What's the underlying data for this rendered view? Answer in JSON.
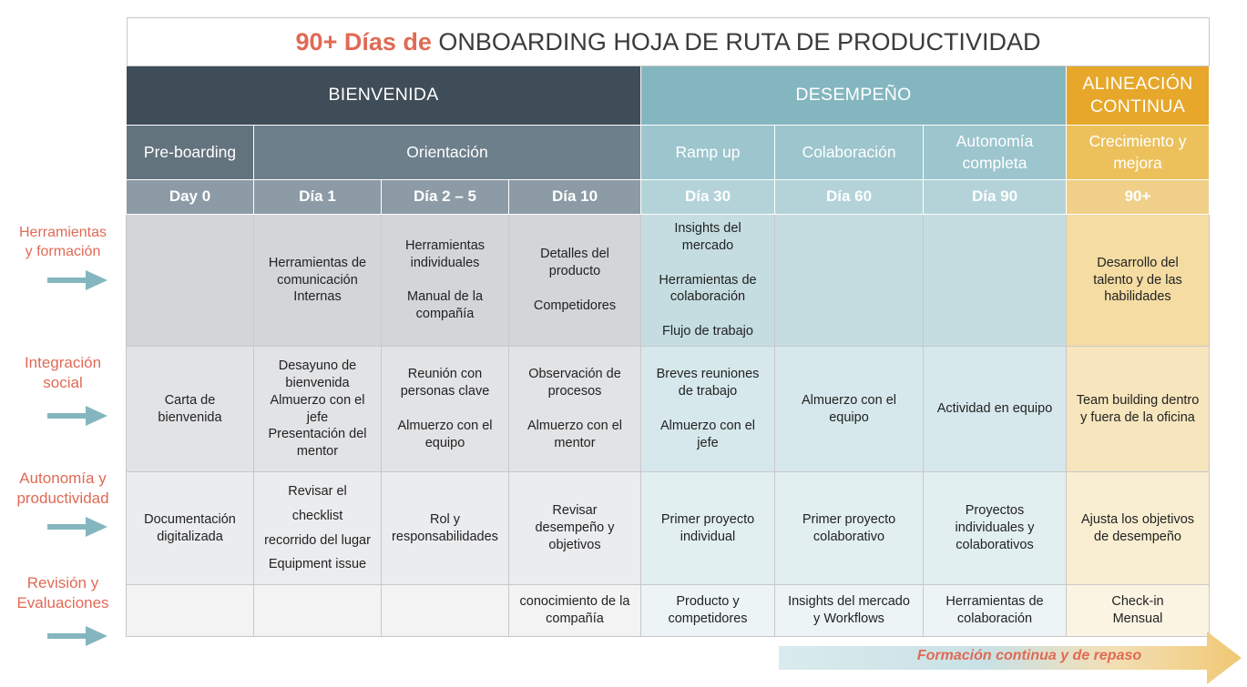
{
  "title": {
    "highlight": "90+ Días de",
    "rest": " ONBOARDING HOJA DE RUTA DE PRODUCTIVIDAD"
  },
  "colors": {
    "title_accent": "#e06a55",
    "bienvenida": "#3f4d58",
    "desempeno": "#84b6c0",
    "alineacion": "#e6a72a"
  },
  "phases": {
    "bienvenida": "BIENVENIDA",
    "desempeno": "DESEMPEÑO",
    "alineacion": "ALINEACIÓN\nCONTINUA"
  },
  "stages": {
    "preboarding": "Pre-boarding",
    "orientacion": "Orientación",
    "rampup": "Ramp up",
    "colaboracion": "Colaboración",
    "autonomia": "Autonomía\ncompleta",
    "crecimiento": "Crecimiento y\nmejora"
  },
  "days": [
    "Day 0",
    "Día 1",
    "Día 2 – 5",
    "Día 10",
    "Día 30",
    "Día 60",
    "Día 90",
    "90+"
  ],
  "row_labels": [
    "Herramientas\ny formación",
    "Integración\nsocial",
    "Autonomía y\nproductividad",
    "Revisión y\nEvaluaciones"
  ],
  "rows": {
    "herramientas": [
      "",
      "Herramientas de\ncomunicación\nInternas",
      "Herramientas\nindividuales\n\nManual de la\ncompañía",
      "Detalles del\nproducto\n\nCompetidores",
      "Insights del\nmercado\n\nHerramientas de\ncolaboración\n\nFlujo de trabajo",
      "",
      "",
      "Desarrollo del\ntalento y de las\nhabilidades"
    ],
    "integracion": [
      "Carta de\nbienvenida",
      "Desayuno de\nbienvenida\nAlmuerzo con el\njefe\nPresentación del\nmentor",
      "Reunión con\npersonas clave\n\nAlmuerzo con el\nequipo",
      "Observación de\nprocesos\n\nAlmuerzo con el\nmentor",
      "Breves reuniones\nde trabajo\n\nAlmuerzo con el\njefe",
      "Almuerzo con el\nequipo",
      "Actividad en equipo",
      "Team building dentro\ny fuera de la oficina"
    ],
    "autonomia": [
      "Documentación\ndigitalizada",
      "Revisar el\nchecklist\nrecorrido del lugar\nEquipment issue",
      "Rol y\nresponsabilidades",
      "Revisar\ndesempeño y\nobjetivos",
      "Primer proyecto\nindividual",
      "Primer proyecto\ncolaborativo",
      "Proyectos\nindividuales y\ncolaborativos",
      "Ajusta los objetivos\nde desempeño"
    ],
    "revision": [
      "",
      "",
      "",
      "conocimiento de la\ncompañía",
      "Producto y\ncompetidores",
      "Insights del mercado\ny Workflows",
      "Herramientas de\ncolaboración",
      "Check-in\nMensual"
    ]
  },
  "footer_arrow_label": "Formación continua y de repaso"
}
